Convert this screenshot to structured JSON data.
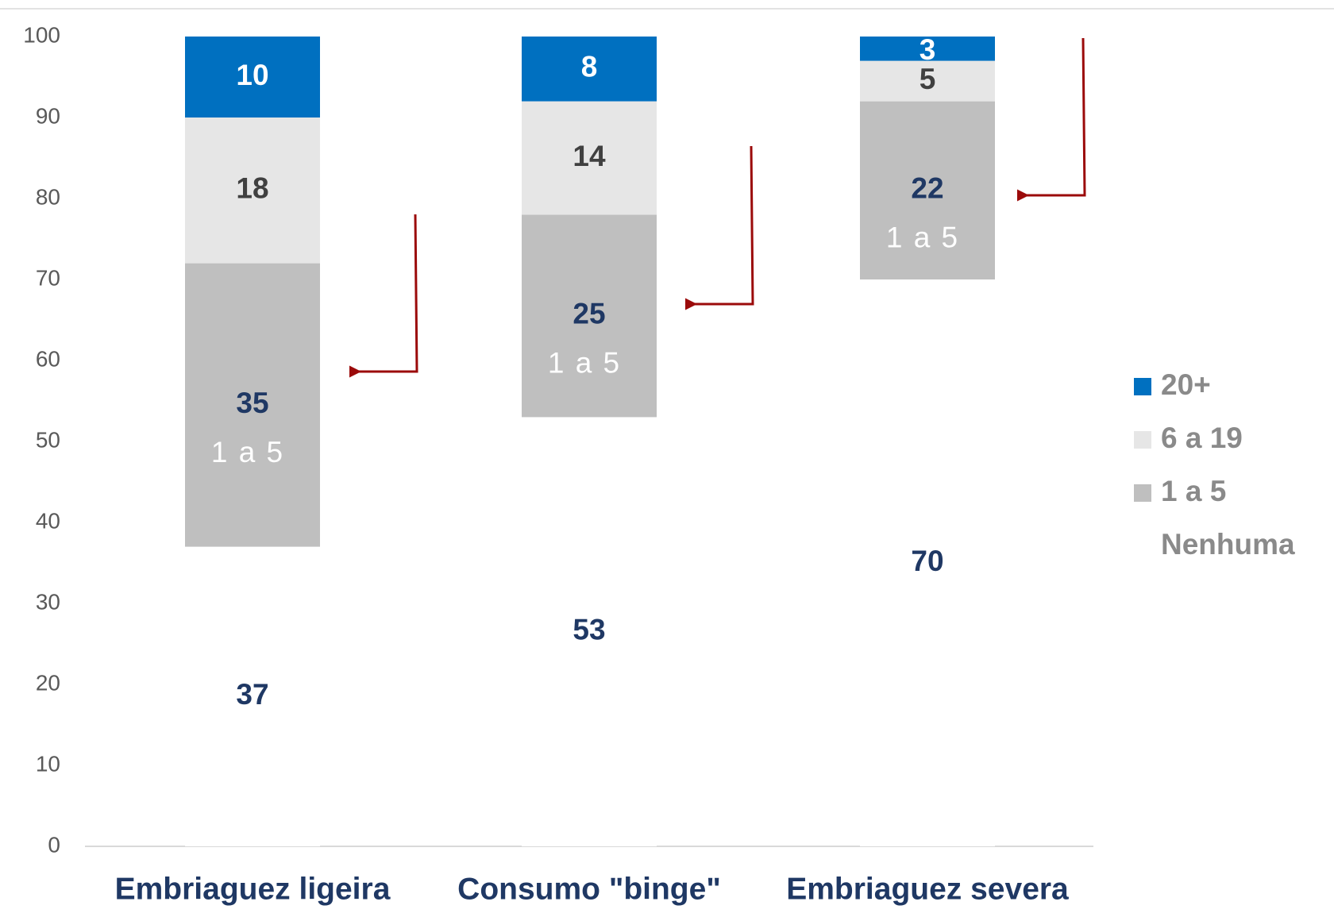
{
  "chart_data": {
    "type": "stacked_bar",
    "categories": [
      "Embriaguez ligeira",
      "Consumo \"binge\"",
      "Embriaguez severa"
    ],
    "series": [
      {
        "name": "Nenhuma",
        "color": "#ffffff",
        "values": [
          37,
          53,
          70
        ]
      },
      {
        "name": "1 a 5",
        "color": "#bfbfbf",
        "values": [
          35,
          25,
          22
        ]
      },
      {
        "name": "6 a 19",
        "color": "#e6e6e6",
        "values": [
          18,
          14,
          5
        ]
      },
      {
        "name": "20+",
        "color": "#0070c0",
        "values": [
          10,
          8,
          3
        ]
      }
    ],
    "ylim": [
      0,
      100
    ],
    "yticks": [
      0,
      10,
      20,
      30,
      40,
      50,
      60,
      70,
      80,
      90,
      100
    ]
  }
}
